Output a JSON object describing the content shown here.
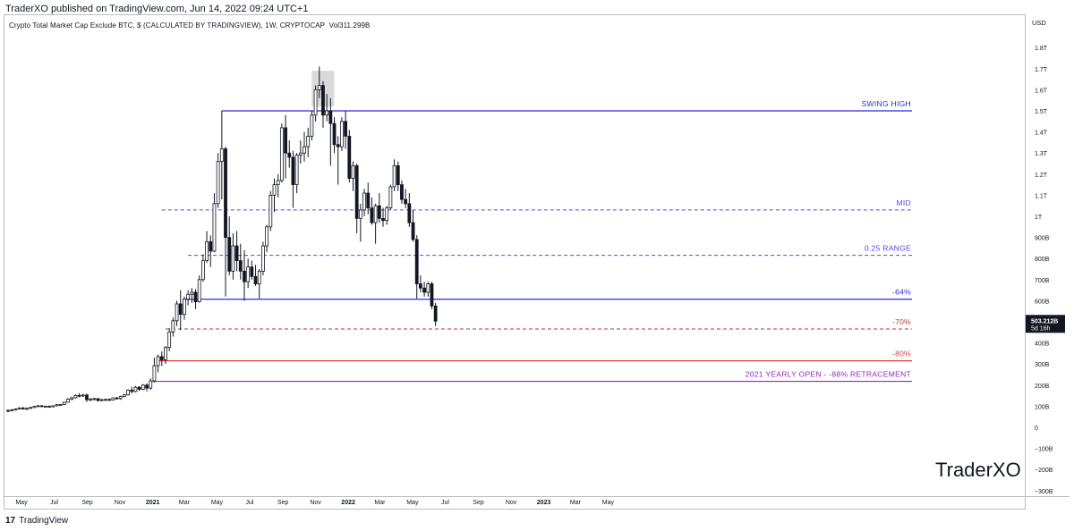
{
  "header": {
    "published": "TraderXO published on TradingView.com, Jun 14, 2022 09:24 UTC+1",
    "symbol": "Crypto Total Market Cap Exclude BTC, $ (CALCULATED BY TRADINGVIEW), 1W, CRYPTOCAP",
    "vol_label": "Vol",
    "vol_value": "311.299B"
  },
  "footer": {
    "logo": "17",
    "brand": "TradingView"
  },
  "watermark": "TraderXO",
  "chart_data": {
    "type": "candlestick",
    "currency_label": "USD",
    "y_ticks": [
      "1.8T",
      "1.7T",
      "1.6T",
      "1.5T",
      "1.4T",
      "1.3T",
      "1.2T",
      "1.1T",
      "1T",
      "900B",
      "800B",
      "700B",
      "600B",
      "500B",
      "400B",
      "300B",
      "200B",
      "100B",
      "0",
      "−100B",
      "−200B",
      "−300B"
    ],
    "y_tick_values": [
      1800,
      1700,
      1600,
      1500,
      1400,
      1300,
      1200,
      1100,
      1000,
      900,
      800,
      700,
      600,
      500,
      400,
      300,
      200,
      100,
      0,
      -100,
      -200,
      -300
    ],
    "x_ticks": [
      "May",
      "Jul",
      "Sep",
      "Nov",
      "2021",
      "Mar",
      "May",
      "Jul",
      "Sep",
      "Nov",
      "2022",
      "Mar",
      "May",
      "Jul",
      "Sep",
      "Nov",
      "2023",
      "Mar",
      "May"
    ],
    "x_tick_dates": [
      "2020-05-01",
      "2020-07-01",
      "2020-09-01",
      "2020-11-01",
      "2021-01-01",
      "2021-03-01",
      "2021-05-01",
      "2021-07-01",
      "2021-09-01",
      "2021-11-01",
      "2022-01-01",
      "2022-03-01",
      "2022-05-01",
      "2022-07-01",
      "2022-09-01",
      "2022-11-01",
      "2023-01-01",
      "2023-03-01",
      "2023-05-01"
    ],
    "bold_x_ticks": [
      "2021",
      "2022",
      "2023"
    ],
    "last_price": {
      "value": "503.212B",
      "countdown": "5d 16h",
      "y": 503
    },
    "levels": [
      {
        "label": "SWING HIGH",
        "y": 1500,
        "style": "solid",
        "color": "#2a2ae0",
        "from": "2021-05-10"
      },
      {
        "label": "MID",
        "y": 1030,
        "style": "dashed",
        "color": "#4b4be8",
        "from": "2021-01-18"
      },
      {
        "label": "0.25 RANGE",
        "y": 815,
        "style": "dashed",
        "color": "#4b4be8",
        "from": "2021-03-08"
      },
      {
        "label": "-64%",
        "y": 607,
        "style": "solid",
        "color": "#2a2ae0",
        "from": "2021-03-01"
      },
      {
        "label": "-70%",
        "y": 466,
        "style": "dashed",
        "color": "#b13a3a",
        "from": "2021-01-25"
      },
      {
        "label": "-80%",
        "y": 315,
        "style": "solid",
        "color": "#d93a3a",
        "from": "2021-01-11"
      },
      {
        "label": "2021 YEARLY OPEN - -88% RETRACEMENT",
        "y": 218,
        "style": "solid",
        "color": "#8e2bb8",
        "from": "2020-12-28"
      }
    ],
    "highlight_box": {
      "from": "2021-10-25",
      "to": "2021-12-06",
      "y_top": 1690,
      "y_bottom": 1520
    },
    "candles": [
      {
        "d": "2020-04-06",
        "o": 77,
        "h": 85,
        "l": 72,
        "c": 80
      },
      {
        "d": "2020-04-13",
        "o": 80,
        "h": 87,
        "l": 76,
        "c": 82
      },
      {
        "d": "2020-04-20",
        "o": 82,
        "h": 90,
        "l": 79,
        "c": 87
      },
      {
        "d": "2020-04-27",
        "o": 87,
        "h": 96,
        "l": 84,
        "c": 91
      },
      {
        "d": "2020-05-04",
        "o": 91,
        "h": 97,
        "l": 84,
        "c": 88
      },
      {
        "d": "2020-05-11",
        "o": 88,
        "h": 94,
        "l": 82,
        "c": 90
      },
      {
        "d": "2020-05-18",
        "o": 90,
        "h": 97,
        "l": 87,
        "c": 94
      },
      {
        "d": "2020-05-25",
        "o": 94,
        "h": 102,
        "l": 91,
        "c": 99
      },
      {
        "d": "2020-06-01",
        "o": 99,
        "h": 106,
        "l": 96,
        "c": 102
      },
      {
        "d": "2020-06-08",
        "o": 102,
        "h": 105,
        "l": 96,
        "c": 99
      },
      {
        "d": "2020-06-15",
        "o": 99,
        "h": 103,
        "l": 95,
        "c": 100
      },
      {
        "d": "2020-06-22",
        "o": 100,
        "h": 103,
        "l": 94,
        "c": 97
      },
      {
        "d": "2020-06-29",
        "o": 97,
        "h": 104,
        "l": 95,
        "c": 102
      },
      {
        "d": "2020-07-06",
        "o": 102,
        "h": 110,
        "l": 100,
        "c": 107
      },
      {
        "d": "2020-07-13",
        "o": 107,
        "h": 111,
        "l": 103,
        "c": 108
      },
      {
        "d": "2020-07-20",
        "o": 108,
        "h": 122,
        "l": 106,
        "c": 119
      },
      {
        "d": "2020-07-27",
        "o": 119,
        "h": 138,
        "l": 117,
        "c": 133
      },
      {
        "d": "2020-08-03",
        "o": 133,
        "h": 145,
        "l": 128,
        "c": 140
      },
      {
        "d": "2020-08-10",
        "o": 140,
        "h": 156,
        "l": 136,
        "c": 151
      },
      {
        "d": "2020-08-17",
        "o": 151,
        "h": 162,
        "l": 143,
        "c": 149
      },
      {
        "d": "2020-08-24",
        "o": 149,
        "h": 158,
        "l": 144,
        "c": 153
      },
      {
        "d": "2020-08-31",
        "o": 153,
        "h": 160,
        "l": 120,
        "c": 131
      },
      {
        "d": "2020-09-07",
        "o": 131,
        "h": 139,
        "l": 124,
        "c": 133
      },
      {
        "d": "2020-09-14",
        "o": 133,
        "h": 140,
        "l": 127,
        "c": 136
      },
      {
        "d": "2020-09-21",
        "o": 136,
        "h": 138,
        "l": 122,
        "c": 127
      },
      {
        "d": "2020-09-28",
        "o": 127,
        "h": 135,
        "l": 123,
        "c": 131
      },
      {
        "d": "2020-10-05",
        "o": 131,
        "h": 136,
        "l": 125,
        "c": 132
      },
      {
        "d": "2020-10-12",
        "o": 132,
        "h": 137,
        "l": 126,
        "c": 129
      },
      {
        "d": "2020-10-19",
        "o": 129,
        "h": 142,
        "l": 127,
        "c": 139
      },
      {
        "d": "2020-10-26",
        "o": 139,
        "h": 144,
        "l": 132,
        "c": 136
      },
      {
        "d": "2020-11-02",
        "o": 136,
        "h": 150,
        "l": 130,
        "c": 146
      },
      {
        "d": "2020-11-09",
        "o": 146,
        "h": 158,
        "l": 142,
        "c": 154
      },
      {
        "d": "2020-11-16",
        "o": 154,
        "h": 180,
        "l": 150,
        "c": 176
      },
      {
        "d": "2020-11-23",
        "o": 176,
        "h": 192,
        "l": 160,
        "c": 170
      },
      {
        "d": "2020-11-30",
        "o": 170,
        "h": 196,
        "l": 166,
        "c": 190
      },
      {
        "d": "2020-12-07",
        "o": 190,
        "h": 195,
        "l": 172,
        "c": 180
      },
      {
        "d": "2020-12-14",
        "o": 180,
        "h": 205,
        "l": 176,
        "c": 200
      },
      {
        "d": "2020-12-21",
        "o": 200,
        "h": 208,
        "l": 170,
        "c": 186
      },
      {
        "d": "2020-12-28",
        "o": 186,
        "h": 232,
        "l": 178,
        "c": 220
      },
      {
        "d": "2021-01-04",
        "o": 220,
        "h": 330,
        "l": 212,
        "c": 292
      },
      {
        "d": "2021-01-11",
        "o": 292,
        "h": 345,
        "l": 260,
        "c": 335
      },
      {
        "d": "2021-01-18",
        "o": 335,
        "h": 360,
        "l": 290,
        "c": 320
      },
      {
        "d": "2021-01-25",
        "o": 320,
        "h": 385,
        "l": 300,
        "c": 378
      },
      {
        "d": "2021-02-01",
        "o": 378,
        "h": 470,
        "l": 360,
        "c": 452
      },
      {
        "d": "2021-02-08",
        "o": 452,
        "h": 520,
        "l": 430,
        "c": 505
      },
      {
        "d": "2021-02-15",
        "o": 505,
        "h": 600,
        "l": 480,
        "c": 585
      },
      {
        "d": "2021-02-22",
        "o": 585,
        "h": 650,
        "l": 460,
        "c": 535
      },
      {
        "d": "2021-03-01",
        "o": 535,
        "h": 620,
        "l": 510,
        "c": 608
      },
      {
        "d": "2021-03-08",
        "o": 608,
        "h": 650,
        "l": 578,
        "c": 630
      },
      {
        "d": "2021-03-15",
        "o": 630,
        "h": 660,
        "l": 590,
        "c": 640
      },
      {
        "d": "2021-03-22",
        "o": 640,
        "h": 655,
        "l": 560,
        "c": 595
      },
      {
        "d": "2021-03-29",
        "o": 595,
        "h": 720,
        "l": 590,
        "c": 700
      },
      {
        "d": "2021-04-05",
        "o": 700,
        "h": 820,
        "l": 690,
        "c": 790
      },
      {
        "d": "2021-04-12",
        "o": 790,
        "h": 930,
        "l": 780,
        "c": 880
      },
      {
        "d": "2021-04-19",
        "o": 880,
        "h": 910,
        "l": 760,
        "c": 835
      },
      {
        "d": "2021-04-26",
        "o": 835,
        "h": 1110,
        "l": 830,
        "c": 1060
      },
      {
        "d": "2021-05-03",
        "o": 1060,
        "h": 1300,
        "l": 1040,
        "c": 1260
      },
      {
        "d": "2021-05-10",
        "o": 1260,
        "h": 1500,
        "l": 1080,
        "c": 1320
      },
      {
        "d": "2021-05-17",
        "o": 1320,
        "h": 1330,
        "l": 620,
        "c": 900
      },
      {
        "d": "2021-05-24",
        "o": 900,
        "h": 1000,
        "l": 720,
        "c": 740
      },
      {
        "d": "2021-05-31",
        "o": 740,
        "h": 920,
        "l": 700,
        "c": 860
      },
      {
        "d": "2021-06-07",
        "o": 860,
        "h": 930,
        "l": 740,
        "c": 790
      },
      {
        "d": "2021-06-14",
        "o": 790,
        "h": 870,
        "l": 700,
        "c": 740
      },
      {
        "d": "2021-06-21",
        "o": 740,
        "h": 840,
        "l": 600,
        "c": 690
      },
      {
        "d": "2021-06-28",
        "o": 690,
        "h": 800,
        "l": 660,
        "c": 760
      },
      {
        "d": "2021-07-05",
        "o": 760,
        "h": 790,
        "l": 700,
        "c": 715
      },
      {
        "d": "2021-07-12",
        "o": 715,
        "h": 770,
        "l": 670,
        "c": 680
      },
      {
        "d": "2021-07-19",
        "o": 680,
        "h": 750,
        "l": 610,
        "c": 740
      },
      {
        "d": "2021-07-26",
        "o": 740,
        "h": 880,
        "l": 720,
        "c": 860
      },
      {
        "d": "2021-08-02",
        "o": 860,
        "h": 960,
        "l": 830,
        "c": 950
      },
      {
        "d": "2021-08-09",
        "o": 950,
        "h": 1120,
        "l": 930,
        "c": 1100
      },
      {
        "d": "2021-08-16",
        "o": 1100,
        "h": 1180,
        "l": 1020,
        "c": 1150
      },
      {
        "d": "2021-08-23",
        "o": 1150,
        "h": 1200,
        "l": 1090,
        "c": 1170
      },
      {
        "d": "2021-08-30",
        "o": 1170,
        "h": 1440,
        "l": 1160,
        "c": 1420
      },
      {
        "d": "2021-09-06",
        "o": 1420,
        "h": 1480,
        "l": 1180,
        "c": 1300
      },
      {
        "d": "2021-09-13",
        "o": 1300,
        "h": 1360,
        "l": 1230,
        "c": 1280
      },
      {
        "d": "2021-09-20",
        "o": 1280,
        "h": 1310,
        "l": 1040,
        "c": 1150
      },
      {
        "d": "2021-09-27",
        "o": 1150,
        "h": 1300,
        "l": 1110,
        "c": 1290
      },
      {
        "d": "2021-10-04",
        "o": 1290,
        "h": 1360,
        "l": 1250,
        "c": 1300
      },
      {
        "d": "2021-10-11",
        "o": 1300,
        "h": 1400,
        "l": 1260,
        "c": 1330
      },
      {
        "d": "2021-10-18",
        "o": 1330,
        "h": 1420,
        "l": 1280,
        "c": 1380
      },
      {
        "d": "2021-10-25",
        "o": 1380,
        "h": 1500,
        "l": 1360,
        "c": 1480
      },
      {
        "d": "2021-11-01",
        "o": 1480,
        "h": 1620,
        "l": 1450,
        "c": 1600
      },
      {
        "d": "2021-11-08",
        "o": 1600,
        "h": 1710,
        "l": 1560,
        "c": 1620
      },
      {
        "d": "2021-11-15",
        "o": 1620,
        "h": 1640,
        "l": 1420,
        "c": 1480
      },
      {
        "d": "2021-11-22",
        "o": 1480,
        "h": 1580,
        "l": 1450,
        "c": 1500
      },
      {
        "d": "2021-11-29",
        "o": 1500,
        "h": 1560,
        "l": 1240,
        "c": 1440
      },
      {
        "d": "2021-12-06",
        "o": 1440,
        "h": 1470,
        "l": 1300,
        "c": 1340
      },
      {
        "d": "2021-12-13",
        "o": 1340,
        "h": 1380,
        "l": 1150,
        "c": 1330
      },
      {
        "d": "2021-12-20",
        "o": 1330,
        "h": 1470,
        "l": 1310,
        "c": 1450
      },
      {
        "d": "2021-12-27",
        "o": 1450,
        "h": 1500,
        "l": 1320,
        "c": 1380
      },
      {
        "d": "2022-01-03",
        "o": 1380,
        "h": 1410,
        "l": 1160,
        "c": 1180
      },
      {
        "d": "2022-01-10",
        "o": 1180,
        "h": 1260,
        "l": 1120,
        "c": 1240
      },
      {
        "d": "2022-01-17",
        "o": 1240,
        "h": 1250,
        "l": 920,
        "c": 990
      },
      {
        "d": "2022-01-24",
        "o": 990,
        "h": 1060,
        "l": 880,
        "c": 1030
      },
      {
        "d": "2022-01-31",
        "o": 1030,
        "h": 1130,
        "l": 1000,
        "c": 1110
      },
      {
        "d": "2022-02-07",
        "o": 1110,
        "h": 1160,
        "l": 1010,
        "c": 1040
      },
      {
        "d": "2022-02-14",
        "o": 1040,
        "h": 1090,
        "l": 960,
        "c": 970
      },
      {
        "d": "2022-02-21",
        "o": 970,
        "h": 1060,
        "l": 870,
        "c": 1050
      },
      {
        "d": "2022-02-28",
        "o": 1050,
        "h": 1110,
        "l": 970,
        "c": 990
      },
      {
        "d": "2022-03-07",
        "o": 990,
        "h": 1040,
        "l": 950,
        "c": 980
      },
      {
        "d": "2022-03-14",
        "o": 980,
        "h": 1050,
        "l": 960,
        "c": 1040
      },
      {
        "d": "2022-03-21",
        "o": 1040,
        "h": 1150,
        "l": 1030,
        "c": 1140
      },
      {
        "d": "2022-03-28",
        "o": 1140,
        "h": 1270,
        "l": 1120,
        "c": 1240
      },
      {
        "d": "2022-04-04",
        "o": 1240,
        "h": 1260,
        "l": 1120,
        "c": 1150
      },
      {
        "d": "2022-04-11",
        "o": 1150,
        "h": 1170,
        "l": 1060,
        "c": 1080
      },
      {
        "d": "2022-04-18",
        "o": 1080,
        "h": 1130,
        "l": 1040,
        "c": 1060
      },
      {
        "d": "2022-04-25",
        "o": 1060,
        "h": 1110,
        "l": 950,
        "c": 970
      },
      {
        "d": "2022-05-02",
        "o": 970,
        "h": 1030,
        "l": 880,
        "c": 890
      },
      {
        "d": "2022-05-09",
        "o": 890,
        "h": 910,
        "l": 610,
        "c": 680
      },
      {
        "d": "2022-05-16",
        "o": 680,
        "h": 720,
        "l": 640,
        "c": 660
      },
      {
        "d": "2022-05-23",
        "o": 660,
        "h": 690,
        "l": 620,
        "c": 640
      },
      {
        "d": "2022-05-30",
        "o": 640,
        "h": 690,
        "l": 620,
        "c": 680
      },
      {
        "d": "2022-06-06",
        "o": 680,
        "h": 690,
        "l": 560,
        "c": 575
      },
      {
        "d": "2022-06-13",
        "o": 575,
        "h": 590,
        "l": 480,
        "c": 503
      }
    ]
  }
}
